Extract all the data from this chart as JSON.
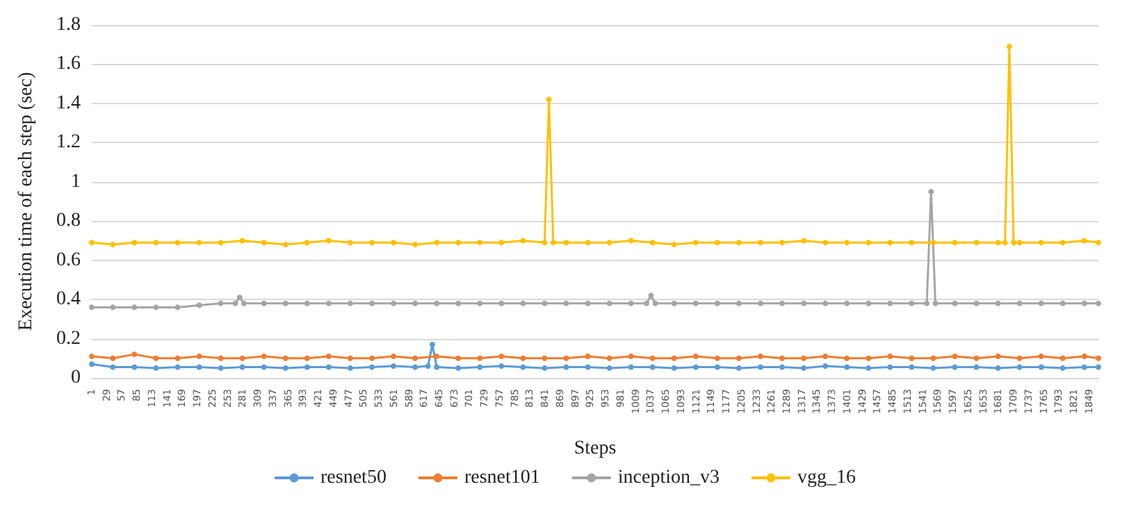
{
  "chart_data": {
    "type": "line",
    "xlabel": "Steps",
    "ylabel": "Execution time of each step (sec)",
    "xlim": [
      1,
      1866
    ],
    "xticks": [
      1,
      29,
      57,
      85,
      113,
      141,
      169,
      197,
      225,
      253,
      281,
      309,
      337,
      365,
      393,
      421,
      449,
      477,
      505,
      533,
      561,
      589,
      617,
      645,
      673,
      701,
      729,
      757,
      785,
      813,
      841,
      869,
      897,
      925,
      953,
      981,
      1009,
      1037,
      1065,
      1093,
      1121,
      1149,
      1177,
      1205,
      1233,
      1261,
      1289,
      1317,
      1345,
      1373,
      1401,
      1429,
      1457,
      1485,
      1513,
      1541,
      1569,
      1597,
      1625,
      1653,
      1681,
      1709,
      1737,
      1765,
      1793,
      1821,
      1849
    ],
    "ylim": [
      0,
      1.8
    ],
    "yticks": [
      0,
      0.2,
      0.4,
      0.6,
      0.8,
      1,
      1.2,
      1.4,
      1.6,
      1.8
    ],
    "grid": "y",
    "legend": "bottom",
    "marker": "circle",
    "line_style": "solid",
    "series": [
      {
        "name": "resnet50",
        "color": "#5b9bd5",
        "x": [
          1,
          40,
          80,
          120,
          160,
          200,
          240,
          280,
          320,
          360,
          400,
          440,
          480,
          520,
          560,
          600,
          624,
          632,
          640,
          680,
          720,
          760,
          800,
          840,
          880,
          920,
          960,
          1000,
          1040,
          1080,
          1120,
          1160,
          1200,
          1240,
          1280,
          1320,
          1360,
          1400,
          1440,
          1480,
          1520,
          1560,
          1600,
          1640,
          1680,
          1720,
          1760,
          1800,
          1840,
          1866
        ],
        "values": [
          0.07,
          0.055,
          0.055,
          0.05,
          0.055,
          0.055,
          0.05,
          0.055,
          0.055,
          0.05,
          0.055,
          0.055,
          0.05,
          0.055,
          0.06,
          0.055,
          0.06,
          0.17,
          0.055,
          0.05,
          0.055,
          0.06,
          0.055,
          0.05,
          0.055,
          0.055,
          0.05,
          0.055,
          0.055,
          0.05,
          0.055,
          0.055,
          0.05,
          0.055,
          0.055,
          0.05,
          0.06,
          0.055,
          0.05,
          0.055,
          0.055,
          0.05,
          0.055,
          0.055,
          0.05,
          0.055,
          0.055,
          0.05,
          0.055,
          0.055
        ]
      },
      {
        "name": "resnet101",
        "color": "#ed7d31",
        "x": [
          1,
          40,
          80,
          120,
          160,
          200,
          240,
          280,
          320,
          360,
          400,
          440,
          480,
          520,
          560,
          600,
          640,
          680,
          720,
          760,
          800,
          840,
          880,
          920,
          960,
          1000,
          1040,
          1080,
          1120,
          1160,
          1200,
          1240,
          1280,
          1320,
          1360,
          1400,
          1440,
          1480,
          1520,
          1560,
          1600,
          1640,
          1680,
          1720,
          1760,
          1800,
          1840,
          1866
        ],
        "values": [
          0.11,
          0.1,
          0.12,
          0.1,
          0.1,
          0.11,
          0.1,
          0.1,
          0.11,
          0.1,
          0.1,
          0.11,
          0.1,
          0.1,
          0.11,
          0.1,
          0.11,
          0.1,
          0.1,
          0.11,
          0.1,
          0.1,
          0.1,
          0.11,
          0.1,
          0.11,
          0.1,
          0.1,
          0.11,
          0.1,
          0.1,
          0.11,
          0.1,
          0.1,
          0.11,
          0.1,
          0.1,
          0.11,
          0.1,
          0.1,
          0.11,
          0.1,
          0.11,
          0.1,
          0.11,
          0.1,
          0.11,
          0.1
        ]
      },
      {
        "name": "inception_v3",
        "color": "#a5a5a5",
        "x": [
          1,
          40,
          80,
          120,
          160,
          200,
          240,
          267,
          275,
          283,
          320,
          360,
          400,
          440,
          480,
          520,
          560,
          600,
          640,
          680,
          720,
          760,
          800,
          840,
          880,
          920,
          960,
          1000,
          1029,
          1037,
          1045,
          1080,
          1120,
          1160,
          1200,
          1240,
          1280,
          1320,
          1360,
          1400,
          1440,
          1480,
          1520,
          1548,
          1556,
          1564,
          1600,
          1640,
          1680,
          1720,
          1760,
          1800,
          1840,
          1866
        ],
        "values": [
          0.36,
          0.36,
          0.36,
          0.36,
          0.36,
          0.37,
          0.38,
          0.38,
          0.41,
          0.38,
          0.38,
          0.38,
          0.38,
          0.38,
          0.38,
          0.38,
          0.38,
          0.38,
          0.38,
          0.38,
          0.38,
          0.38,
          0.38,
          0.38,
          0.38,
          0.38,
          0.38,
          0.38,
          0.38,
          0.42,
          0.38,
          0.38,
          0.38,
          0.38,
          0.38,
          0.38,
          0.38,
          0.38,
          0.38,
          0.38,
          0.38,
          0.38,
          0.38,
          0.38,
          0.95,
          0.38,
          0.38,
          0.38,
          0.38,
          0.38,
          0.38,
          0.38,
          0.38,
          0.38
        ]
      },
      {
        "name": "vgg_16",
        "color": "#ffc000",
        "x": [
          1,
          40,
          80,
          120,
          160,
          200,
          240,
          280,
          320,
          360,
          400,
          440,
          480,
          520,
          560,
          600,
          640,
          680,
          720,
          760,
          800,
          840,
          848,
          856,
          880,
          920,
          960,
          1000,
          1040,
          1080,
          1120,
          1160,
          1200,
          1240,
          1280,
          1320,
          1360,
          1400,
          1440,
          1480,
          1520,
          1560,
          1600,
          1640,
          1680,
          1693,
          1701,
          1709,
          1720,
          1760,
          1800,
          1840,
          1866
        ],
        "values": [
          0.69,
          0.68,
          0.69,
          0.69,
          0.69,
          0.69,
          0.69,
          0.7,
          0.69,
          0.68,
          0.69,
          0.7,
          0.69,
          0.69,
          0.69,
          0.68,
          0.69,
          0.69,
          0.69,
          0.69,
          0.7,
          0.69,
          1.42,
          0.69,
          0.69,
          0.69,
          0.69,
          0.7,
          0.69,
          0.68,
          0.69,
          0.69,
          0.69,
          0.69,
          0.69,
          0.7,
          0.69,
          0.69,
          0.69,
          0.69,
          0.69,
          0.69,
          0.69,
          0.69,
          0.69,
          0.69,
          1.69,
          0.69,
          0.69,
          0.69,
          0.69,
          0.7,
          0.69
        ]
      }
    ]
  }
}
